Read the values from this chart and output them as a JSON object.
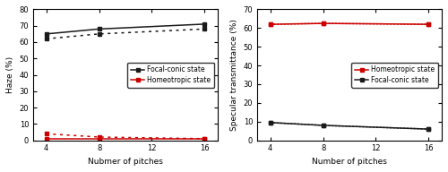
{
  "left": {
    "x": [
      4,
      8,
      16
    ],
    "focal_conic_solid": [
      65,
      68,
      71
    ],
    "focal_conic_dotted": [
      62,
      65,
      68
    ],
    "homeotropic_solid": [
      1,
      1,
      1
    ],
    "homeotropic_dotted": [
      4,
      2,
      1
    ],
    "xlabel": "Nubmer of pitches",
    "ylabel": "Haze (%)",
    "ylim": [
      0,
      80
    ],
    "yticks": [
      0,
      10,
      20,
      30,
      40,
      50,
      60,
      70,
      80
    ],
    "xticks": [
      4,
      8,
      12,
      16
    ],
    "legend1": "Focal-conic state",
    "legend2": "Homeotropic state"
  },
  "right": {
    "x": [
      4,
      8,
      16
    ],
    "homeotropic_solid": [
      62,
      62.5,
      62
    ],
    "homeotropic_dotted": [
      62,
      62.5,
      62
    ],
    "focal_conic_solid": [
      9.5,
      8,
      6
    ],
    "focal_conic_dotted": [
      9.5,
      8,
      6
    ],
    "xlabel": "Number of pitches",
    "ylabel": "Specular transmittance (%)",
    "ylim": [
      0,
      70
    ],
    "yticks": [
      0,
      10,
      20,
      30,
      40,
      50,
      60,
      70
    ],
    "xticks": [
      4,
      8,
      12,
      16
    ],
    "legend1": "Homeotropic state",
    "legend2": "Focal-conic state"
  },
  "colors": {
    "black": "#1a1a1a",
    "red": "#cc0000"
  },
  "marker": "s",
  "markersize": 3.5,
  "linewidth": 1.1,
  "dot_density": 1.5
}
